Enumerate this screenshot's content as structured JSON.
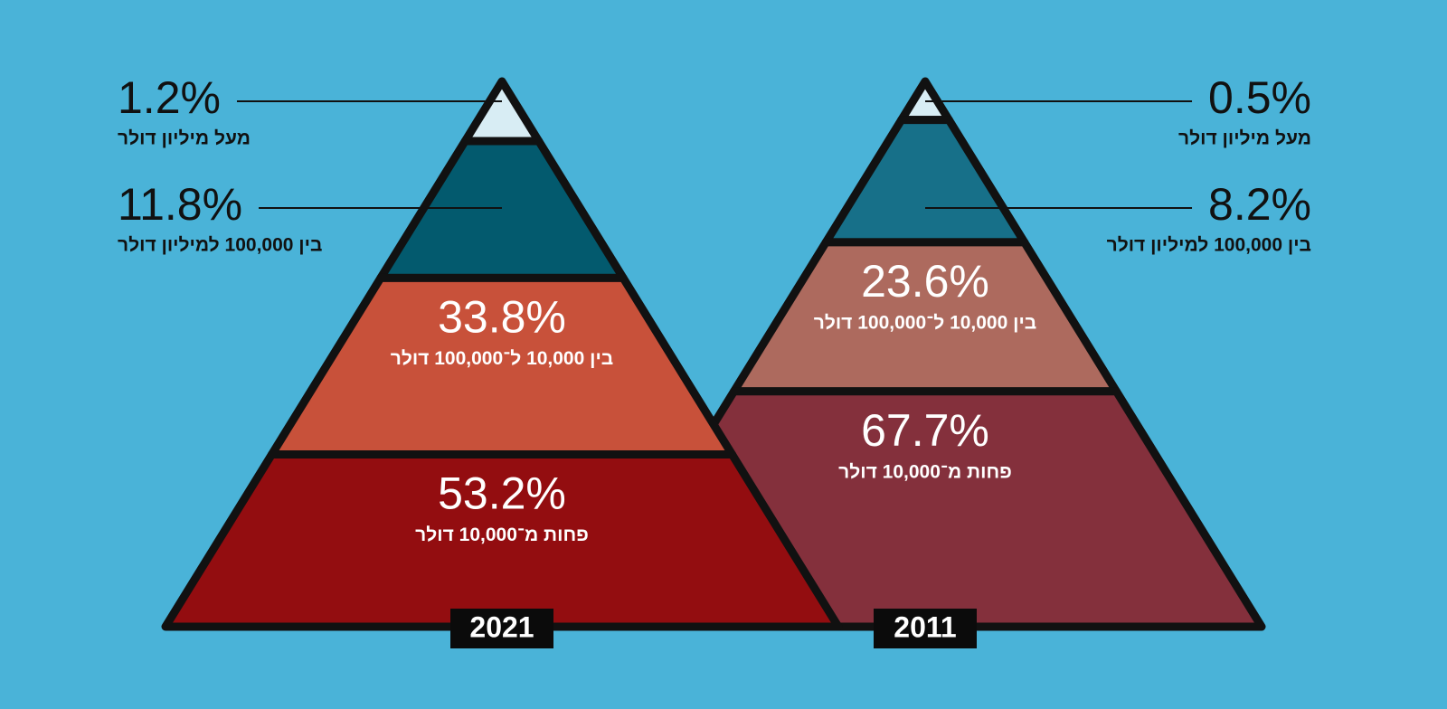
{
  "chart_data": [
    {
      "type": "pyramid",
      "title": "2021",
      "categories": [
        "מעל מיליון דולר",
        "בין 100,000 למיליון דולר",
        "בין 10,000 ל־100,000 דולר",
        "פחות מ־10,000 דולר"
      ],
      "values": [
        1.2,
        11.8,
        33.8,
        53.2
      ],
      "value_labels": [
        "1.2%",
        "11.8%",
        "33.8%",
        "53.2%"
      ],
      "colors": [
        "#d8edf4",
        "#035a6e",
        "#c8513a",
        "#930d10"
      ]
    },
    {
      "type": "pyramid",
      "title": "2011",
      "categories": [
        "מעל מיליון דולר",
        "בין 100,000 למיליון דולר",
        "בין 10,000 ל־100,000 דולר",
        "פחות מ־10,000 דולר"
      ],
      "values": [
        0.5,
        8.2,
        23.6,
        67.7
      ],
      "value_labels": [
        "0.5%",
        "8.2%",
        "23.6%",
        "67.7%"
      ],
      "colors": [
        "#d8edf4",
        "#177089",
        "#ad6a5e",
        "#84303c"
      ]
    }
  ]
}
